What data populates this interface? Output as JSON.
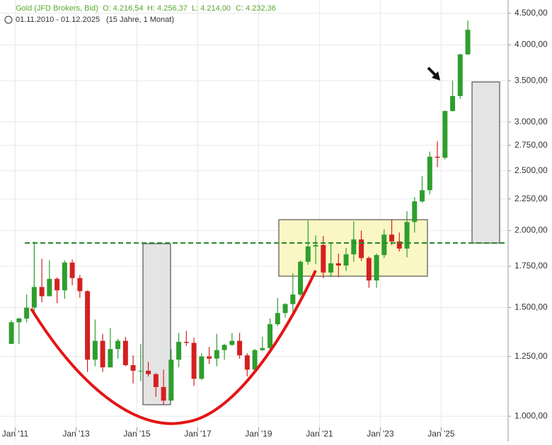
{
  "chart_data": {
    "type": "candlestick",
    "title": "Gold (JFD Brokers, Bid)",
    "quote": [
      "O: 4.216,54",
      "H: 4.256,37",
      "L: 4.214,00",
      "C: 4.232,36"
    ],
    "range": "01.11.2010 - 01.12.2025",
    "span": "(15 Jahre, 1 Monat)",
    "x": [
      2010.75,
      2011,
      2011.25,
      2011.5,
      2011.75,
      2012,
      2012.25,
      2012.5,
      2012.75,
      2013,
      2013.25,
      2013.5,
      2013.75,
      2014,
      2014.25,
      2014.5,
      2014.75,
      2015,
      2015.25,
      2015.5,
      2015.75,
      2016,
      2016.25,
      2016.5,
      2016.75,
      2017,
      2017.25,
      2017.5,
      2017.75,
      2018,
      2018.25,
      2018.5,
      2018.75,
      2019,
      2019.25,
      2019.5,
      2019.75,
      2020,
      2020.25,
      2020.5,
      2020.75,
      2021,
      2021.25,
      2021.5,
      2021.75,
      2022,
      2022.25,
      2022.5,
      2022.75,
      2023,
      2023.25,
      2023.5,
      2023.75,
      2024,
      2024.25,
      2024.5,
      2024.75,
      2025,
      2025.25,
      2025.5,
      2025.75
    ],
    "open": [
      1310,
      1420,
      1440,
      1500,
      1620,
      1565,
      1670,
      1600,
      1775,
      1675,
      1595,
      1235,
      1325,
      1200,
      1285,
      1325,
      1210,
      1185,
      1185,
      1170,
      1115,
      1060,
      1235,
      1320,
      1315,
      1150,
      1250,
      1240,
      1280,
      1305,
      1325,
      1255,
      1190,
      1280,
      1290,
      1410,
      1470,
      1520,
      1575,
      1780,
      1885,
      1895,
      1710,
      1770,
      1755,
      1830,
      1935,
      1805,
      1660,
      1825,
      1970,
      1920,
      1870,
      2065,
      2230,
      2325,
      2635,
      2625,
      3125,
      3305,
      3860
    ],
    "high": [
      1430,
      1445,
      1575,
      1920,
      1800,
      1790,
      1680,
      1790,
      1795,
      1695,
      1600,
      1435,
      1360,
      1390,
      1335,
      1345,
      1255,
      1310,
      1225,
      1175,
      1190,
      1285,
      1365,
      1375,
      1340,
      1265,
      1295,
      1360,
      1310,
      1365,
      1365,
      1265,
      1285,
      1345,
      1440,
      1555,
      1525,
      1705,
      1790,
      2075,
      1965,
      1960,
      1915,
      1835,
      1875,
      2070,
      2000,
      1815,
      1835,
      2010,
      2080,
      1985,
      2150,
      2265,
      2450,
      2685,
      2790,
      3130,
      3500,
      3870,
      4380
    ],
    "low": [
      1310,
      1310,
      1420,
      1480,
      1530,
      1565,
      1525,
      1550,
      1630,
      1555,
      1180,
      1205,
      1180,
      1200,
      1240,
      1205,
      1130,
      1140,
      1160,
      1075,
      1045,
      1060,
      1200,
      1300,
      1120,
      1145,
      1215,
      1205,
      1235,
      1300,
      1240,
      1160,
      1180,
      1275,
      1265,
      1400,
      1445,
      1450,
      1565,
      1760,
      1765,
      1675,
      1680,
      1680,
      1720,
      1780,
      1785,
      1615,
      1615,
      1805,
      1895,
      1850,
      1810,
      1985,
      2220,
      2290,
      2535,
      2610,
      3120,
      3270,
      3860
    ],
    "close": [
      1420,
      1440,
      1500,
      1620,
      1565,
      1670,
      1600,
      1775,
      1675,
      1595,
      1235,
      1325,
      1200,
      1285,
      1325,
      1210,
      1185,
      1185,
      1170,
      1115,
      1060,
      1235,
      1320,
      1315,
      1150,
      1250,
      1240,
      1280,
      1305,
      1325,
      1255,
      1190,
      1280,
      1290,
      1410,
      1470,
      1520,
      1575,
      1780,
      1885,
      1895,
      1710,
      1770,
      1755,
      1830,
      1935,
      1805,
      1660,
      1825,
      1970,
      1920,
      1870,
      2065,
      2230,
      2325,
      2635,
      2625,
      3125,
      3305,
      3860,
      4232.36
    ],
    "up_color": "#2e9e2e",
    "down_color": "#d42020",
    "log_scale": true,
    "grid": true,
    "xlim": [
      2010.5,
      2027.2
    ],
    "xticks": [
      {
        "value": 2011,
        "label": "Jan '11"
      },
      {
        "value": 2013,
        "label": "Jan '13"
      },
      {
        "value": 2015,
        "label": "Jan '15"
      },
      {
        "value": 2017,
        "label": "Jan '17"
      },
      {
        "value": 2019,
        "label": "Jan '19"
      },
      {
        "value": 2021,
        "label": "Jan '21"
      },
      {
        "value": 2023,
        "label": "Jan '23"
      },
      {
        "value": 2025,
        "label": "Jan '25"
      }
    ],
    "ylim": [
      910,
      4730
    ],
    "yticks": [
      {
        "value": 1000,
        "label": "1.000,00"
      },
      {
        "value": 1250,
        "label": "1.250,00"
      },
      {
        "value": 1500,
        "label": "1.500,00"
      },
      {
        "value": 1750,
        "label": "1.750,00"
      },
      {
        "value": 2000,
        "label": "2.000,00"
      },
      {
        "value": 2250,
        "label": "2.250,00"
      },
      {
        "value": 2500,
        "label": "2.500,00"
      },
      {
        "value": 2750,
        "label": "2.750,00"
      },
      {
        "value": 3000,
        "label": "3.000,00"
      },
      {
        "value": 3500,
        "label": "3.500,00"
      },
      {
        "value": 4000,
        "label": "4.000,00"
      },
      {
        "value": 4500,
        "label": "4.500,00"
      }
    ]
  }
}
